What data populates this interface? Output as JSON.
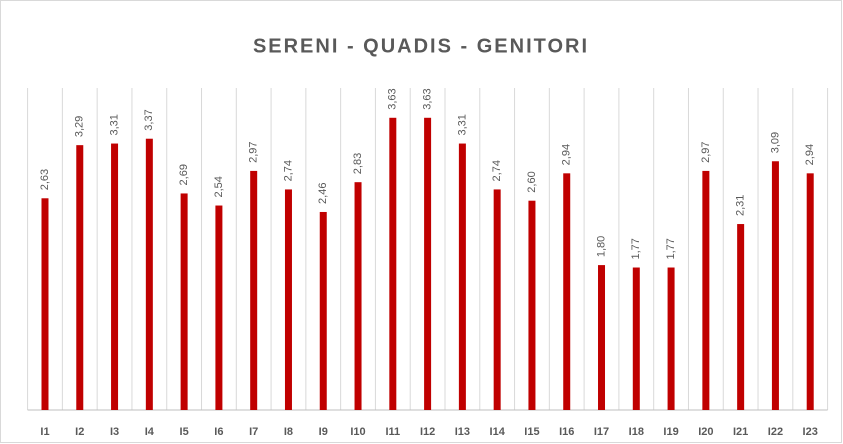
{
  "chart_data": {
    "type": "bar",
    "title": "SERENI - QUADIS - GENITORI",
    "categories": [
      "I1",
      "I2",
      "I3",
      "I4",
      "I5",
      "I6",
      "I7",
      "I8",
      "I9",
      "I10",
      "I11",
      "I12",
      "I13",
      "I14",
      "I15",
      "I16",
      "I17",
      "I18",
      "I19",
      "I20",
      "I21",
      "I22",
      "I23"
    ],
    "values": [
      2.63,
      3.29,
      3.31,
      3.37,
      2.69,
      2.54,
      2.97,
      2.74,
      2.46,
      2.83,
      3.63,
      3.63,
      3.31,
      2.74,
      2.6,
      2.94,
      1.8,
      1.77,
      1.77,
      2.97,
      2.31,
      3.09,
      2.94
    ],
    "value_labels": [
      "2,63",
      "3,29",
      "3,31",
      "3,37",
      "2,69",
      "2,54",
      "2,97",
      "2,74",
      "2,46",
      "2,83",
      "3,63",
      "3,63",
      "3,31",
      "2,74",
      "2,60",
      "2,94",
      "1,80",
      "1,77",
      "1,77",
      "2,97",
      "2,31",
      "3,09",
      "2,94"
    ],
    "color": "#c00000",
    "ylim": [
      0,
      4
    ]
  }
}
